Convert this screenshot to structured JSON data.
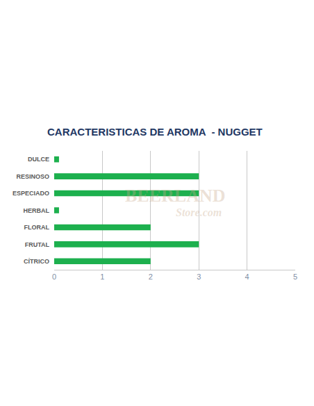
{
  "chart_data": {
    "type": "bar",
    "orientation": "horizontal",
    "title": "CARACTERISTICAS DE AROMA  - NUGGET",
    "categories": [
      "DULCE",
      "RESINOSO",
      "ESPECIADO",
      "HERBAL",
      "FLORAL",
      "FRUTAL",
      "CÍTRICO"
    ],
    "values": [
      0.1,
      3,
      3,
      0.1,
      2,
      3,
      2
    ],
    "color": "#1db04e",
    "xlim": [
      0,
      5
    ],
    "xticks": [
      0,
      1,
      2,
      3,
      4,
      5
    ],
    "grid": true,
    "annotations": [
      "BEERLAND",
      "Store.com"
    ]
  }
}
